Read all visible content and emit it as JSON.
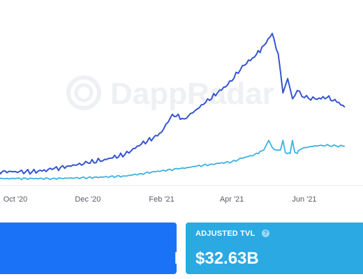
{
  "chart_data": {
    "type": "line",
    "x_ticks": [
      "Oct '20",
      "Dec '20",
      "Feb '21",
      "Apr '21",
      "Jun '21"
    ],
    "series": [
      {
        "color": "#3554d1",
        "x": [
          "2020-09-01",
          "2020-09-15",
          "2020-10-01",
          "2020-10-15",
          "2020-11-01",
          "2020-11-15",
          "2020-12-01",
          "2020-12-15",
          "2021-01-01",
          "2021-01-15",
          "2021-01-25",
          "2021-02-01",
          "2021-02-10",
          "2021-02-20",
          "2021-03-01",
          "2021-03-10",
          "2021-03-20",
          "2021-04-01",
          "2021-04-10",
          "2021-04-20",
          "2021-04-28",
          "2021-05-05",
          "2021-05-10",
          "2021-05-14",
          "2021-05-18",
          "2021-05-22",
          "2021-05-26",
          "2021-06-01",
          "2021-06-10",
          "2021-06-20",
          "2021-06-30",
          "2021-07-05"
        ],
        "y": [
          12.5,
          11.5,
          11.8,
          11.5,
          13.5,
          16.5,
          19,
          22,
          26,
          35,
          40,
          45,
          60,
          56,
          63,
          70,
          78,
          88,
          101,
          108,
          118,
          128,
          111,
          78,
          90,
          73,
          80,
          74,
          73,
          74,
          70,
          66
        ]
      },
      {
        "color": "#3bb1e2",
        "x": [
          "2020-09-01",
          "2020-10-01",
          "2020-11-01",
          "2020-12-01",
          "2021-01-01",
          "2021-01-15",
          "2021-02-01",
          "2021-02-15",
          "2021-03-01",
          "2021-03-15",
          "2021-04-01",
          "2021-04-10",
          "2021-04-20",
          "2021-04-28",
          "2021-05-02",
          "2021-05-05",
          "2021-05-08",
          "2021-05-12",
          "2021-05-14",
          "2021-05-16",
          "2021-05-18",
          "2021-05-20",
          "2021-05-22",
          "2021-05-24",
          "2021-05-26",
          "2021-05-28",
          "2021-06-01",
          "2021-06-15",
          "2021-07-05"
        ],
        "y": [
          6,
          5.8,
          5.9,
          6.6,
          8,
          10,
          12.5,
          14,
          16,
          18,
          20,
          23,
          26,
          30,
          38,
          32,
          30,
          30,
          38,
          28,
          27,
          27,
          38,
          28,
          27,
          30,
          32,
          34,
          33
        ]
      }
    ],
    "watermark": "DappRadar"
  },
  "cards": {
    "tvl_value": "B",
    "adjusted_label": "ADJUSTED TVL",
    "adjusted_value": "$32.63B",
    "help_icon": "?"
  }
}
